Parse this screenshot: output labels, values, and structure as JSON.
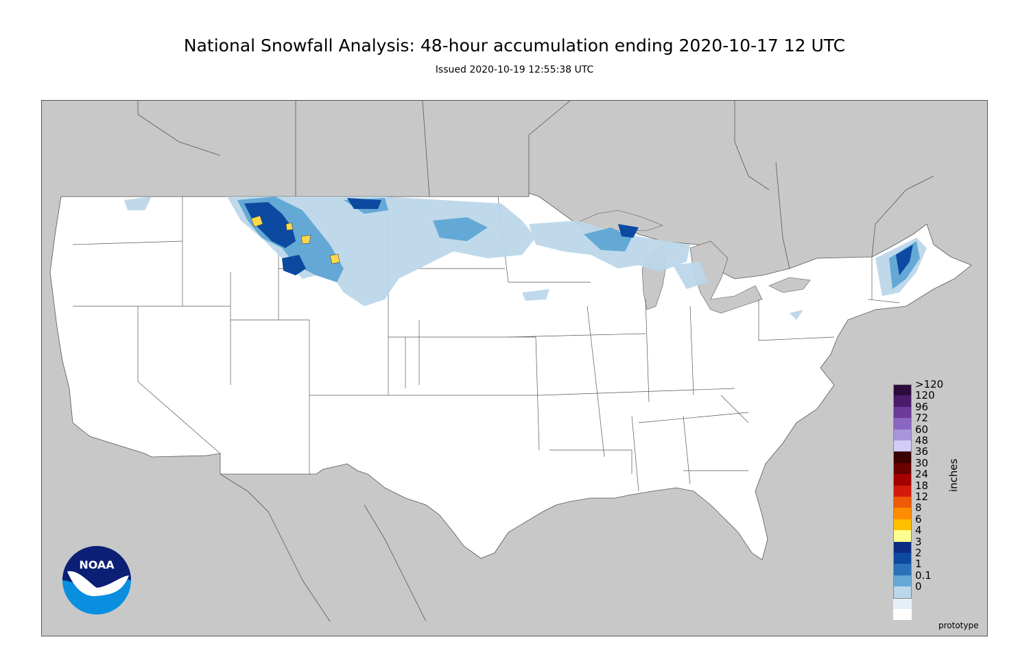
{
  "header": {
    "title": "National Snowfall Analysis: 48-hour accumulation ending 2020-10-17 12 UTC",
    "issued": "Issued 2020-10-19 12:55:38 UTC"
  },
  "legend": {
    "units": "inches",
    "classes": [
      {
        "label": ">120",
        "color": "#2b0a3d"
      },
      {
        "label": "120",
        "color": "#4a1a6b"
      },
      {
        "label": "96",
        "color": "#6b3a9a"
      },
      {
        "label": "72",
        "color": "#8a66c2"
      },
      {
        "label": "60",
        "color": "#a896dc"
      },
      {
        "label": "48",
        "color": "#d2cdf6"
      },
      {
        "label": "36",
        "color": "#3b0000"
      },
      {
        "label": "30",
        "color": "#6b0000"
      },
      {
        "label": "24",
        "color": "#a50000"
      },
      {
        "label": "18",
        "color": "#d41a0a"
      },
      {
        "label": "12",
        "color": "#ee5a06"
      },
      {
        "label": "8",
        "color": "#ff8c00"
      },
      {
        "label": "6",
        "color": "#ffc000"
      },
      {
        "label": "4",
        "color": "#ffff90"
      },
      {
        "label": "3",
        "color": "#0c2c84"
      },
      {
        "label": "2",
        "color": "#0b4aa0"
      },
      {
        "label": "1",
        "color": "#2b72bb"
      },
      {
        "label": "0.1",
        "color": "#64a9d6"
      },
      {
        "label": "0",
        "color": "#bcd7ea"
      }
    ],
    "extra_colors": [
      "#e6eff7",
      "#ffffff"
    ]
  },
  "colors": {
    "land_outside": "#c8c8c8",
    "conus": "#ffffff",
    "borders": "#555555",
    "snow_light": "#bcd7ea",
    "snow_mid": "#64a9d6",
    "snow_heavy": "#0b4aa0",
    "snow_peak": "#ffd84a"
  },
  "footer": {
    "prototype": "prototype",
    "logo_text": "NOAA"
  }
}
